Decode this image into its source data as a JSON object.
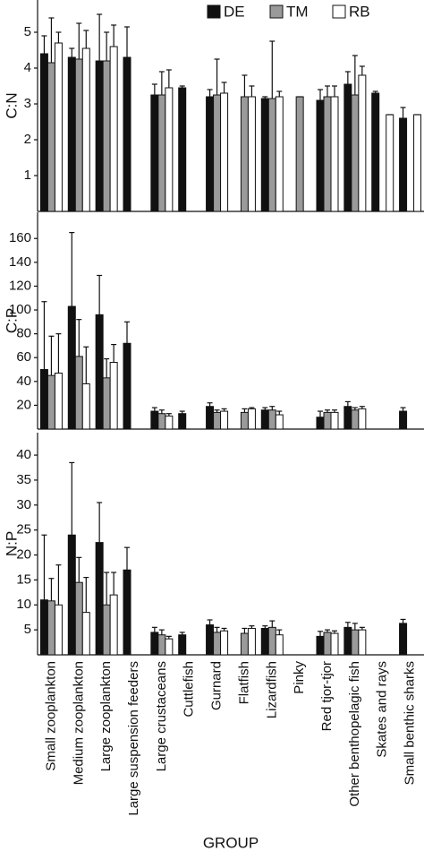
{
  "chart_data": [
    {
      "type": "bar",
      "ylabel": "C:N",
      "ylim": [
        0,
        5.9
      ],
      "yticks": [
        1,
        2,
        3,
        4,
        5
      ],
      "series": [
        {
          "name": "DE",
          "color": "#111111",
          "values": [
            4.4,
            4.3,
            4.2,
            4.3,
            3.25,
            3.45,
            3.2,
            null,
            3.15,
            null,
            3.1,
            3.55,
            3.3,
            2.6
          ],
          "errors": [
            0.5,
            0.25,
            1.3,
            0.85,
            0.3,
            0.05,
            0.2,
            null,
            0.05,
            null,
            0.3,
            0.35,
            0.05,
            0.3
          ]
        },
        {
          "name": "TM",
          "color": "#9a9a9a",
          "values": [
            4.15,
            4.25,
            4.2,
            null,
            3.25,
            null,
            3.25,
            3.2,
            3.15,
            3.2,
            3.2,
            3.25,
            null,
            null
          ],
          "errors": [
            1.25,
            1.0,
            0.8,
            null,
            0.65,
            null,
            1.0,
            0.6,
            1.6,
            0,
            0.3,
            1.1,
            null,
            null
          ]
        },
        {
          "name": "RB",
          "color": "#ffffff",
          "values": [
            4.7,
            4.55,
            4.6,
            null,
            3.45,
            null,
            3.3,
            3.2,
            3.2,
            null,
            3.2,
            3.8,
            2.7,
            2.7
          ],
          "errors": [
            0.3,
            0.5,
            0.6,
            null,
            0.5,
            null,
            0.3,
            0.3,
            0.15,
            null,
            0.3,
            0.25,
            0,
            0
          ]
        }
      ]
    },
    {
      "type": "bar",
      "ylabel": "C:P",
      "ylim": [
        0,
        182
      ],
      "yticks": [
        20,
        40,
        60,
        80,
        100,
        120,
        140,
        160
      ],
      "series": [
        {
          "color": "#111111",
          "values": [
            50,
            103,
            96,
            72,
            15,
            13,
            19,
            null,
            16,
            null,
            10,
            19,
            null,
            15
          ],
          "errors": [
            57,
            62,
            33,
            18,
            3,
            2,
            3,
            null,
            2,
            null,
            5,
            4,
            null,
            3
          ]
        },
        {
          "color": "#9a9a9a",
          "values": [
            45,
            61,
            43,
            null,
            13,
            null,
            14,
            14,
            16,
            null,
            14,
            16,
            null,
            null
          ],
          "errors": [
            33,
            31,
            16,
            null,
            3,
            null,
            2,
            3,
            3,
            null,
            2,
            2,
            null,
            null
          ]
        },
        {
          "color": "#ffffff",
          "values": [
            47,
            38,
            56,
            null,
            11,
            null,
            15,
            17,
            12,
            null,
            14,
            17,
            null,
            null
          ],
          "errors": [
            33,
            31,
            15,
            null,
            2,
            null,
            2,
            1,
            3,
            null,
            2,
            2,
            null,
            null
          ]
        }
      ]
    },
    {
      "type": "bar",
      "ylabel": "N:P",
      "xlabel": "GROUP",
      "ylim": [
        0,
        44.5
      ],
      "yticks": [
        5,
        10,
        15,
        20,
        25,
        30,
        35,
        40
      ],
      "categories": [
        "Small zooplankton",
        "Medium zooplankton",
        "Large zooplankton",
        "Large suspension feeders",
        "Large crustaceans",
        "Cuttlefish",
        "Gurnard",
        "Flatfish",
        "Lizardfish",
        "Pinky",
        "Red tjor-tjor",
        "Other benthopelagic fish",
        "Skates and rays",
        "Small benthic sharks"
      ],
      "series": [
        {
          "color": "#111111",
          "values": [
            11,
            24,
            22.5,
            17,
            4.5,
            4,
            6,
            null,
            5.3,
            null,
            3.7,
            5.5,
            null,
            6.3
          ],
          "errors": [
            13,
            14.5,
            8,
            4.5,
            1,
            0.5,
            1,
            null,
            0.5,
            null,
            1,
            1,
            null,
            0.8
          ]
        },
        {
          "color": "#9a9a9a",
          "values": [
            10.8,
            14.5,
            10,
            null,
            4,
            null,
            4.5,
            4.3,
            5.5,
            null,
            4.5,
            5,
            null,
            null
          ],
          "errors": [
            4.5,
            5,
            6.5,
            null,
            1,
            null,
            1,
            1,
            1.3,
            null,
            0.5,
            1.3,
            null,
            null
          ]
        },
        {
          "color": "#ffffff",
          "values": [
            10,
            8.5,
            12,
            null,
            3.2,
            null,
            4.8,
            5.3,
            4,
            null,
            4.3,
            5,
            null,
            null
          ],
          "errors": [
            8,
            7,
            4.5,
            null,
            0.5,
            null,
            0.5,
            0.5,
            1,
            null,
            0.5,
            0.5,
            null,
            null
          ]
        }
      ]
    }
  ]
}
